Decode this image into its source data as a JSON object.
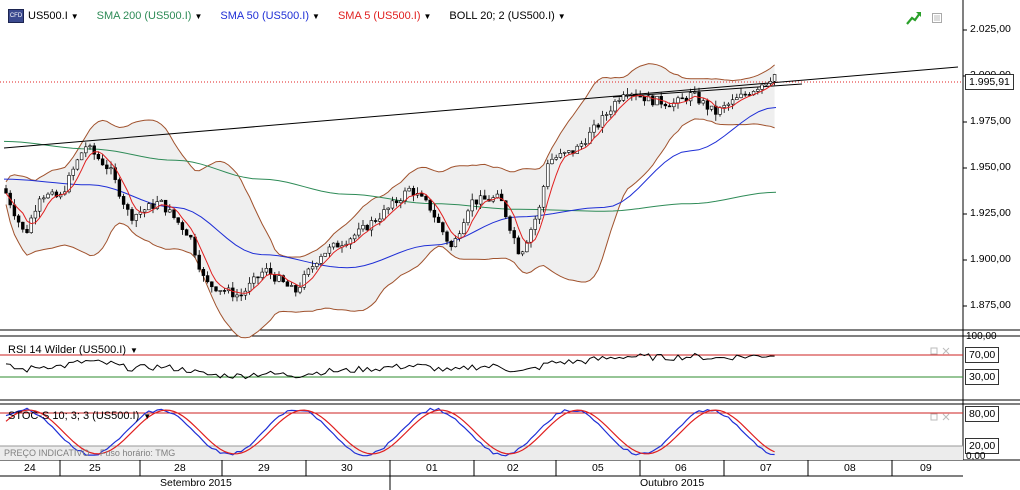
{
  "header": {
    "symbol": "US500.I",
    "indicators": [
      {
        "label": "SMA 200 (US500.I)",
        "color": "#2e8b57"
      },
      {
        "label": "SMA 50 (US500.I)",
        "color": "#1f2fd6"
      },
      {
        "label": "SMA 5 (US500.I)",
        "color": "#e02020"
      },
      {
        "label": "BOLL 20; 2 (US500.I)",
        "color": "#000000"
      }
    ]
  },
  "price_axis": {
    "ticks": [
      "2.025,00",
      "2.000,00",
      "1.975,00",
      "1.950,00",
      "1.925,00",
      "1.900,00",
      "1.875,00"
    ],
    "current": "1.995,91"
  },
  "rsi_panel": {
    "title": "RSI 14 Wilder (US500.I)",
    "ticks": [
      "100,00",
      "70,00",
      "30,00"
    ]
  },
  "stoch_panel": {
    "title": "STOC-S 10; 3; 3 (US500.I)",
    "ticks": [
      "80,00",
      "20,00",
      "0,00"
    ]
  },
  "footer": {
    "indicative": "PREÇO INDICATIVO",
    "timezone": "Fuso horário: TMG",
    "days": [
      "24",
      "25",
      "28",
      "29",
      "30",
      "01",
      "02",
      "05",
      "06",
      "07",
      "08",
      "09"
    ],
    "months": [
      "Setembro 2015",
      "Outubro 2015"
    ]
  },
  "chart_data": {
    "type": "candlestick",
    "x": [
      "24",
      "25",
      "28",
      "29",
      "30",
      "01",
      "02",
      "05",
      "06",
      "07"
    ],
    "ylim": [
      1860,
      2035
    ],
    "close": [
      1925,
      1935,
      1885,
      1890,
      1915,
      1935,
      1925,
      1985,
      1978,
      1996
    ],
    "series": [
      {
        "name": "SMA 200 (US500.I)",
        "values": [
          1960,
          1956,
          1950,
          1940,
          1932,
          1927,
          1924,
          1923,
          1927,
          1933
        ]
      },
      {
        "name": "SMA 50 (US500.I)",
        "values": [
          1940,
          1937,
          1925,
          1900,
          1893,
          1905,
          1920,
          1925,
          1955,
          1978
        ]
      }
    ],
    "rsi": {
      "ylim": [
        0,
        100
      ],
      "levels": [
        70,
        30
      ],
      "last": 70
    },
    "stochastic": {
      "ylim": [
        0,
        100
      ],
      "levels": [
        80,
        20
      ],
      "last": 80
    }
  }
}
